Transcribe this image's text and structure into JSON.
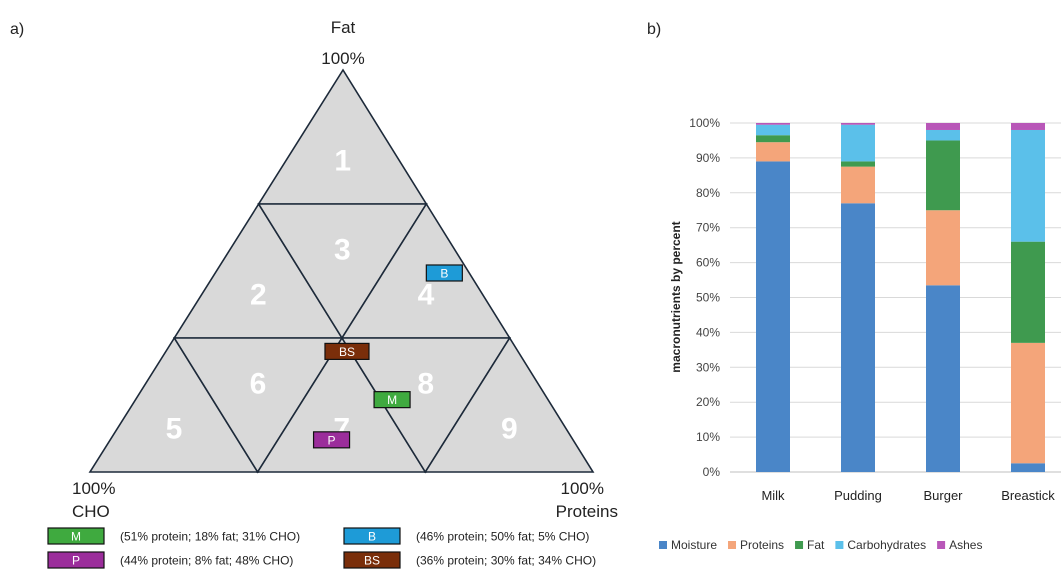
{
  "panel_a": {
    "label": "a)",
    "apex_top": {
      "name": "Fat",
      "pct": "100%"
    },
    "apex_left": {
      "name": "CHO",
      "pct": "100%"
    },
    "apex_right": {
      "name": "Proteins",
      "pct": "100%"
    },
    "regions": [
      "1",
      "2",
      "3",
      "4",
      "5",
      "6",
      "7",
      "8",
      "9"
    ],
    "fill_color": "#d9d9d9",
    "samples": [
      {
        "code": "M",
        "protein": 51,
        "fat": 18,
        "cho": 31,
        "color": "#3faa3f",
        "legend": "(51% protein; 18% fat; 31% CHO)"
      },
      {
        "code": "B",
        "protein": 46,
        "fat": 50,
        "cho": 5,
        "color": "#1e9bd7",
        "legend": "(46% protein; 50% fat; 5% CHO)"
      },
      {
        "code": "P",
        "protein": 44,
        "fat": 8,
        "cho": 48,
        "color": "#9b2d9b",
        "legend": "(44% protein; 8% fat; 48% CHO)"
      },
      {
        "code": "BS",
        "protein": 36,
        "fat": 30,
        "cho": 34,
        "color": "#7a2e0a",
        "legend": "(36% protein; 30% fat; 34% CHO)"
      }
    ]
  },
  "panel_b": {
    "label": "b)"
  },
  "chart_data": {
    "type": "bar",
    "stacked": true,
    "categories": [
      "Milk",
      "Pudding",
      "Burger",
      "Breastick"
    ],
    "ylabel": "macronutrients by percent",
    "ylim": [
      0,
      100
    ],
    "yticks": [
      "0%",
      "10%",
      "20%",
      "30%",
      "40%",
      "50%",
      "60%",
      "70%",
      "80%",
      "90%",
      "100%"
    ],
    "grid": true,
    "legend_position": "bottom",
    "series": [
      {
        "name": "Moisture",
        "color": "#4a86c8",
        "values": [
          89,
          77,
          53.5,
          2.5
        ]
      },
      {
        "name": "Proteins",
        "color": "#f4a57a",
        "values": [
          5.5,
          10.5,
          21.5,
          34.5
        ]
      },
      {
        "name": "Fat",
        "color": "#3f9a4f",
        "values": [
          2,
          1.5,
          20,
          29
        ]
      },
      {
        "name": "Carbohydrates",
        "color": "#5bc0ea",
        "values": [
          3,
          10.5,
          3,
          32
        ]
      },
      {
        "name": "Ashes",
        "color": "#b857b8",
        "values": [
          0.5,
          0.5,
          2,
          2
        ]
      }
    ]
  }
}
